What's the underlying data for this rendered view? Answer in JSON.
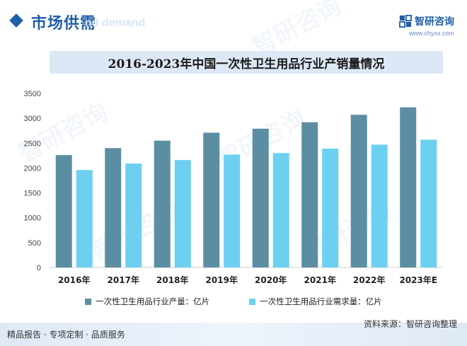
{
  "header": {
    "section_title": "市场供需",
    "section_ghost": "nd demand",
    "brand_name": "智研咨询",
    "brand_url": "www.chyxx.com"
  },
  "chart_data": {
    "type": "bar",
    "title": "2016-2023年中国一次性卫生用品行业产销量情况",
    "categories": [
      "2016年",
      "2017年",
      "2018年",
      "2019年",
      "2020年",
      "2021年",
      "2022年",
      "2023年E"
    ],
    "series": [
      {
        "name": "一次性卫生用品行业产量：亿片",
        "color": "#5b8ea3",
        "values": [
          2260,
          2400,
          2550,
          2710,
          2790,
          2920,
          3070,
          3220
        ]
      },
      {
        "name": "一次性卫生用品行业需求量：亿片",
        "color": "#6dd0f0",
        "values": [
          1960,
          2090,
          2160,
          2270,
          2300,
          2390,
          2470,
          2570
        ]
      }
    ],
    "ylim": [
      0,
      3500
    ],
    "yticks": [
      0,
      500,
      1000,
      1500,
      2000,
      2500,
      3000,
      3500
    ],
    "xlabel": "",
    "ylabel": "",
    "grid": false,
    "legend": "bottom"
  },
  "footer": {
    "left": "精品报告 · 专项定制 · 品质服务",
    "source": "资料来源：智研咨询整理"
  }
}
